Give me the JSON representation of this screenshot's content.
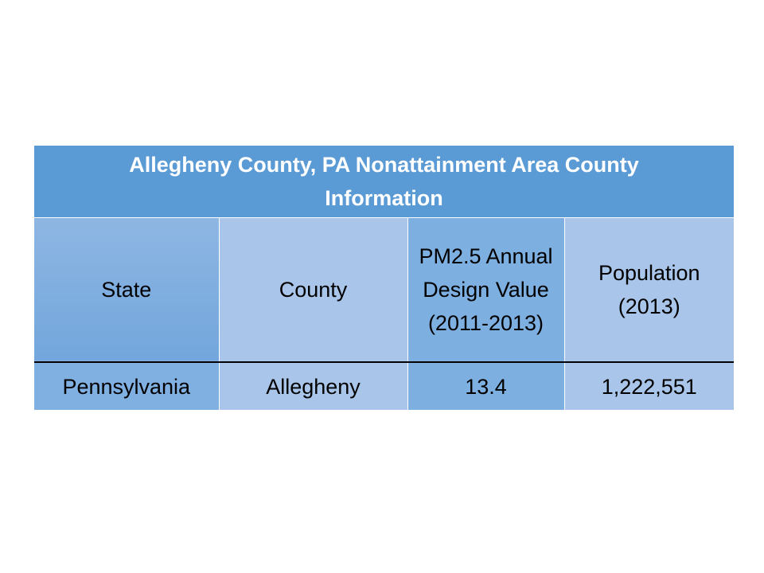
{
  "table": {
    "title": "Allegheny County, PA Nonattainment Area County Information",
    "headers": [
      "State",
      "County",
      "PM2.5 Annual Design Value (2011-2013)",
      "Population (2013)"
    ],
    "rows": [
      [
        "Pennsylvania",
        "Allegheny",
        "13.4",
        "1,222,551"
      ]
    ]
  }
}
